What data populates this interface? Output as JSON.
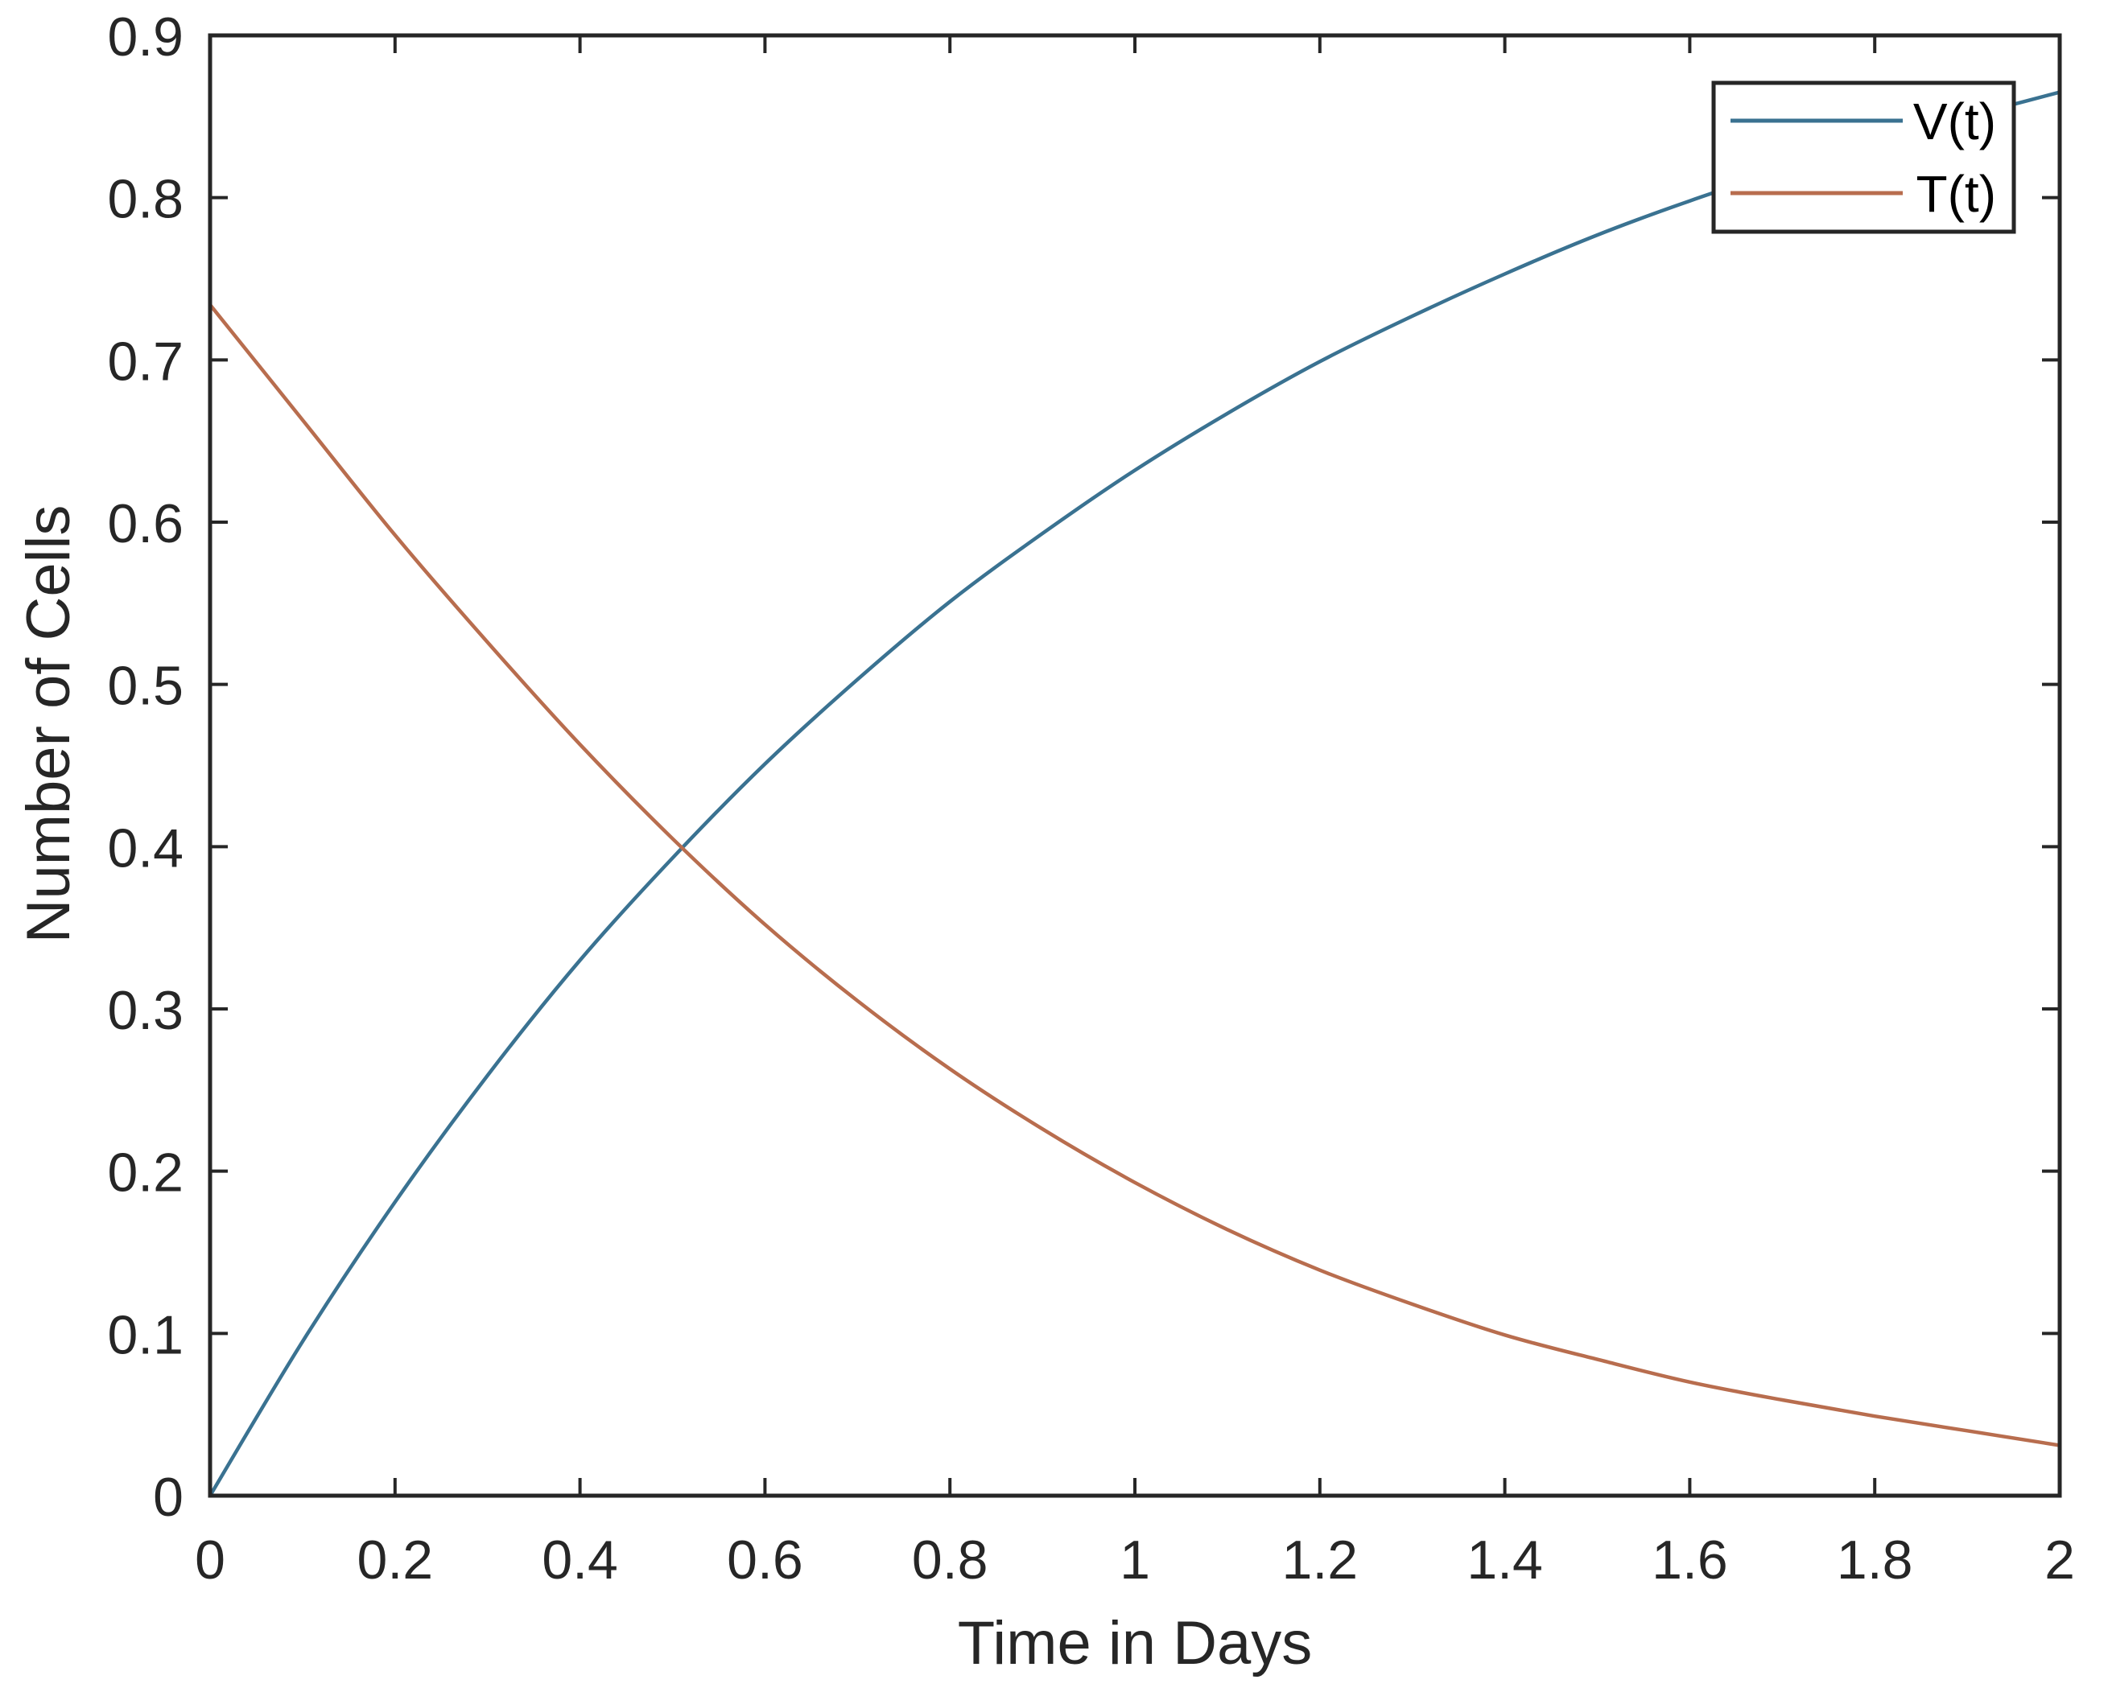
{
  "chart_data": {
    "type": "line",
    "title": "",
    "xlabel": "Time in Days",
    "ylabel": "Number of Cells",
    "xlim": [
      0,
      2
    ],
    "ylim": [
      0,
      0.9
    ],
    "grid": false,
    "legend_position": "upper right (inside)",
    "xticks": [
      0,
      0.2,
      0.4,
      0.6,
      0.8,
      1,
      1.2,
      1.4,
      1.6,
      1.8,
      2
    ],
    "xtick_labels": [
      "0",
      "0.2",
      "0.4",
      "0.6",
      "0.8",
      "1",
      "1.2",
      "1.4",
      "1.6",
      "1.8",
      "2"
    ],
    "yticks": [
      0,
      0.1,
      0.2,
      0.3,
      0.4,
      0.5,
      0.6,
      0.7,
      0.8,
      0.9
    ],
    "ytick_labels": [
      "0",
      "0.1",
      "0.2",
      "0.3",
      "0.4",
      "0.5",
      "0.6",
      "0.7",
      "0.8",
      "0.9"
    ],
    "x": [
      0,
      0.1,
      0.2,
      0.3,
      0.4,
      0.5,
      0.6,
      0.7,
      0.8,
      0.9,
      1.0,
      1.1,
      1.2,
      1.3,
      1.4,
      1.5,
      1.6,
      1.7,
      1.8,
      1.9,
      2.0
    ],
    "series": [
      {
        "name": "V(t)",
        "color": "#3a7291",
        "values": [
          0,
          0.095,
          0.181,
          0.259,
          0.33,
          0.393,
          0.451,
          0.503,
          0.551,
          0.593,
          0.632,
          0.667,
          0.699,
          0.727,
          0.753,
          0.777,
          0.798,
          0.817,
          0.835,
          0.85,
          0.865
        ]
      },
      {
        "name": "T(t)",
        "color": "#b86d4e",
        "values": [
          0.734,
          0.663,
          0.592,
          0.526,
          0.463,
          0.405,
          0.352,
          0.305,
          0.263,
          0.226,
          0.193,
          0.164,
          0.139,
          0.118,
          0.099,
          0.084,
          0.07,
          0.059,
          0.049,
          0.04,
          0.031
        ]
      }
    ],
    "annotations": []
  },
  "legend": {
    "items": [
      {
        "label": "V(t)",
        "color": "#3a7291"
      },
      {
        "label": "T(t)",
        "color": "#b86d4e"
      }
    ]
  },
  "axes": {
    "x_title": "Time in Days",
    "y_title": "Number of Cells"
  }
}
